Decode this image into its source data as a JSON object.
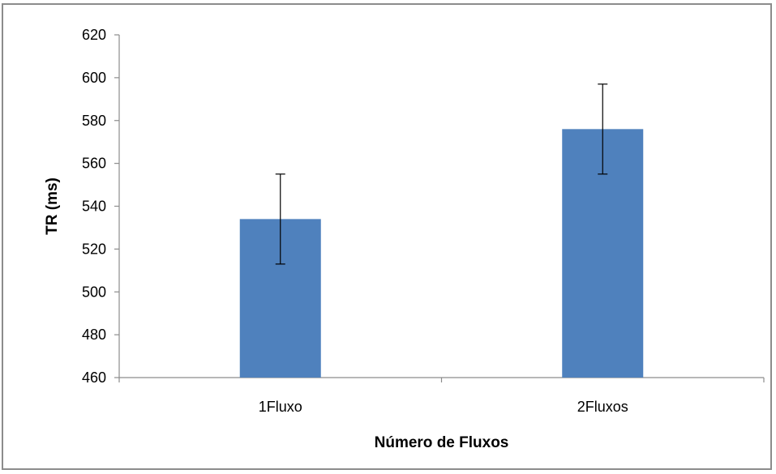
{
  "chart_data": {
    "type": "bar",
    "title": "",
    "xlabel": "Número de Fluxos",
    "ylabel": "TR (ms)",
    "categories": [
      "1Fluxo",
      "2Fluxos"
    ],
    "values": [
      534,
      576
    ],
    "error": [
      21,
      21
    ],
    "ylim": [
      460,
      620
    ],
    "yticks": [
      460,
      480,
      500,
      520,
      540,
      560,
      580,
      600,
      620
    ],
    "grid": false,
    "legend": "none",
    "bar_color": "#4f81bd",
    "axis_color": "#8c8c8c"
  }
}
